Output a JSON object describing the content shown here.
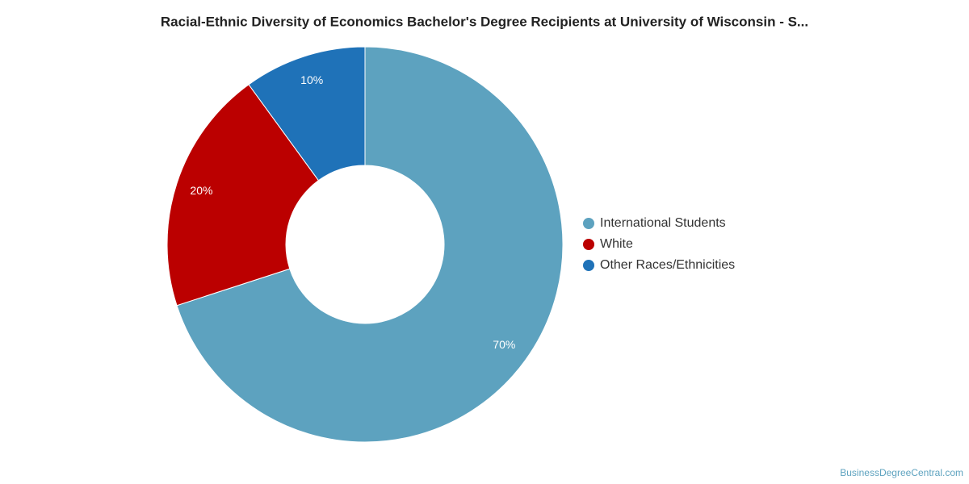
{
  "chart_data": {
    "type": "donut",
    "title": "Racial-Ethnic Diversity of Economics Bachelor's Degree Recipients at University of Wisconsin - S...",
    "categories": [
      "International Students",
      "White",
      "Other Races/Ethnicities"
    ],
    "values": [
      70,
      20,
      10
    ],
    "value_labels": [
      "70%",
      "20%",
      "10%"
    ],
    "colors": [
      "#5da2bf",
      "#bb0000",
      "#1f72b8"
    ],
    "legend": "right",
    "credit": "BusinessDegreeCentral.com"
  }
}
